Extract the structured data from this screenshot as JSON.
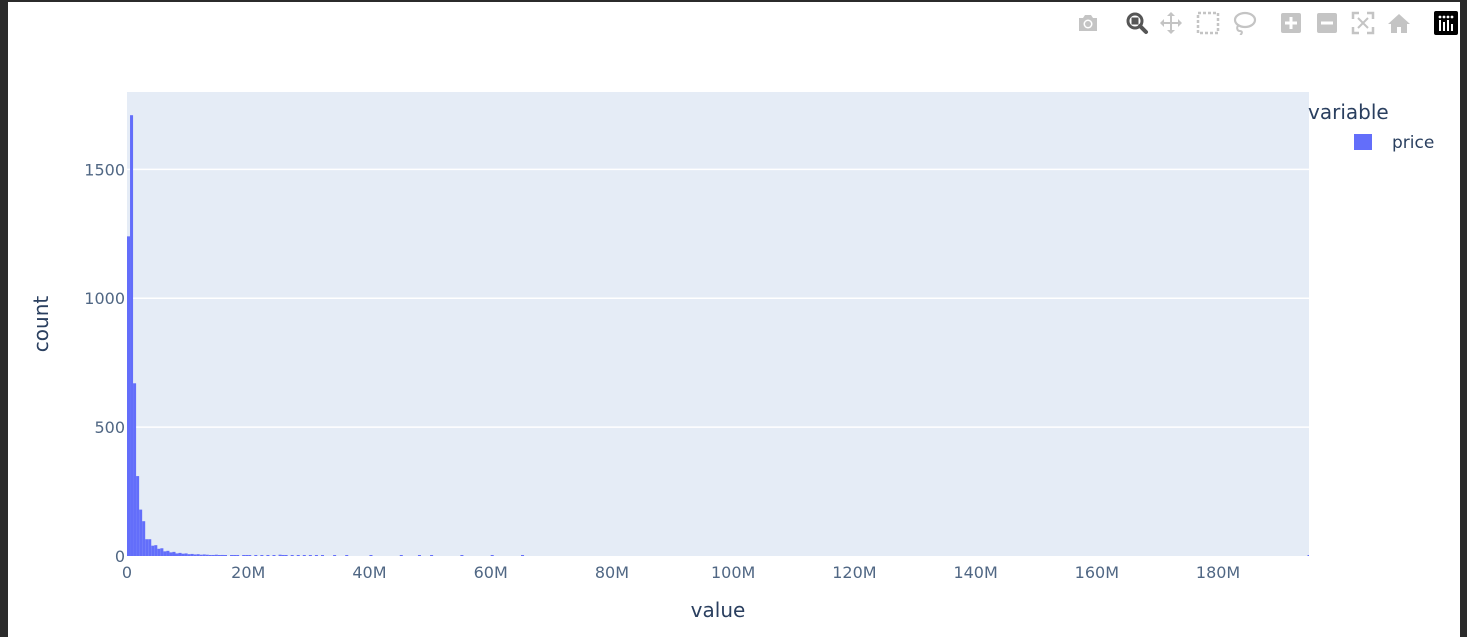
{
  "modebar": {
    "buttons": [
      {
        "name": "camera-icon",
        "icon": "camera",
        "title": "Download plot as a png"
      },
      {
        "name": "zoom-icon",
        "icon": "zoom",
        "title": "Zoom",
        "active": true
      },
      {
        "name": "pan-icon",
        "icon": "pan",
        "title": "Pan"
      },
      {
        "name": "box-select-icon",
        "icon": "box-select",
        "title": "Box Select"
      },
      {
        "name": "lasso-select-icon",
        "icon": "lasso",
        "title": "Lasso Select"
      },
      {
        "name": "zoom-in-icon",
        "icon": "zoom-in",
        "title": "Zoom in"
      },
      {
        "name": "zoom-out-icon",
        "icon": "zoom-out",
        "title": "Zoom out"
      },
      {
        "name": "autoscale-icon",
        "icon": "autoscale",
        "title": "Autoscale"
      },
      {
        "name": "reset-axes-icon",
        "icon": "home",
        "title": "Reset axes"
      },
      {
        "name": "plotly-logo-icon",
        "icon": "plotly-logo",
        "title": "Produced with Plotly"
      }
    ]
  },
  "chart_data": {
    "type": "bar",
    "subtype": "histogram",
    "xlabel": "value",
    "ylabel": "count",
    "legend_title": "variable",
    "legend_position": "top-right",
    "colors": {
      "bar": "#636efa",
      "plot_bg": "#e5ecf6",
      "grid": "#ffffff",
      "text": "#2a3f5f",
      "tick_text": "#506784"
    },
    "grid": true,
    "xlim": [
      0,
      195000000
    ],
    "ylim": [
      0,
      1800
    ],
    "xticks": [
      0,
      20000000,
      40000000,
      60000000,
      80000000,
      100000000,
      120000000,
      140000000,
      160000000,
      180000000
    ],
    "xtick_labels": [
      "0",
      "20M",
      "40M",
      "60M",
      "80M",
      "100M",
      "120M",
      "140M",
      "160M",
      "180M"
    ],
    "yticks": [
      0,
      500,
      1000,
      1500
    ],
    "ytick_labels": [
      "0",
      "500",
      "1000",
      "1500"
    ],
    "bin_width": 500000,
    "series": [
      {
        "name": "price",
        "bins": [
          [
            0,
            1240
          ],
          [
            500000,
            1710
          ],
          [
            1000000,
            670
          ],
          [
            1500000,
            310
          ],
          [
            2000000,
            180
          ],
          [
            2500000,
            135
          ],
          [
            3000000,
            65
          ],
          [
            3500000,
            65
          ],
          [
            4000000,
            40
          ],
          [
            4500000,
            42
          ],
          [
            5000000,
            28
          ],
          [
            5500000,
            30
          ],
          [
            6000000,
            18
          ],
          [
            6500000,
            20
          ],
          [
            7000000,
            14
          ],
          [
            7500000,
            16
          ],
          [
            8000000,
            10
          ],
          [
            8500000,
            12
          ],
          [
            9000000,
            9
          ],
          [
            9500000,
            10
          ],
          [
            10000000,
            7
          ],
          [
            10500000,
            8
          ],
          [
            11000000,
            6
          ],
          [
            11500000,
            7
          ],
          [
            12000000,
            5
          ],
          [
            12500000,
            6
          ],
          [
            13000000,
            5
          ],
          [
            13500000,
            4
          ],
          [
            14000000,
            4
          ],
          [
            14500000,
            5
          ],
          [
            15000000,
            3
          ],
          [
            15500000,
            4
          ],
          [
            16000000,
            3
          ],
          [
            17000000,
            3
          ],
          [
            17500000,
            2
          ],
          [
            18000000,
            3
          ],
          [
            19000000,
            2
          ],
          [
            19500000,
            3
          ],
          [
            20000000,
            2
          ],
          [
            21000000,
            2
          ],
          [
            22000000,
            2
          ],
          [
            23000000,
            2
          ],
          [
            24000000,
            1
          ],
          [
            25000000,
            5
          ],
          [
            25500000,
            3
          ],
          [
            26000000,
            2
          ],
          [
            27000000,
            2
          ],
          [
            28000000,
            2
          ],
          [
            29000000,
            2
          ],
          [
            30000000,
            2
          ],
          [
            31000000,
            1
          ],
          [
            32000000,
            2
          ],
          [
            34000000,
            1
          ],
          [
            36000000,
            1
          ],
          [
            40000000,
            1
          ],
          [
            45000000,
            1
          ],
          [
            48000000,
            1
          ],
          [
            50000000,
            1
          ],
          [
            55000000,
            1
          ],
          [
            60000000,
            1
          ],
          [
            65000000,
            1
          ],
          [
            195000000,
            1
          ]
        ]
      }
    ]
  }
}
